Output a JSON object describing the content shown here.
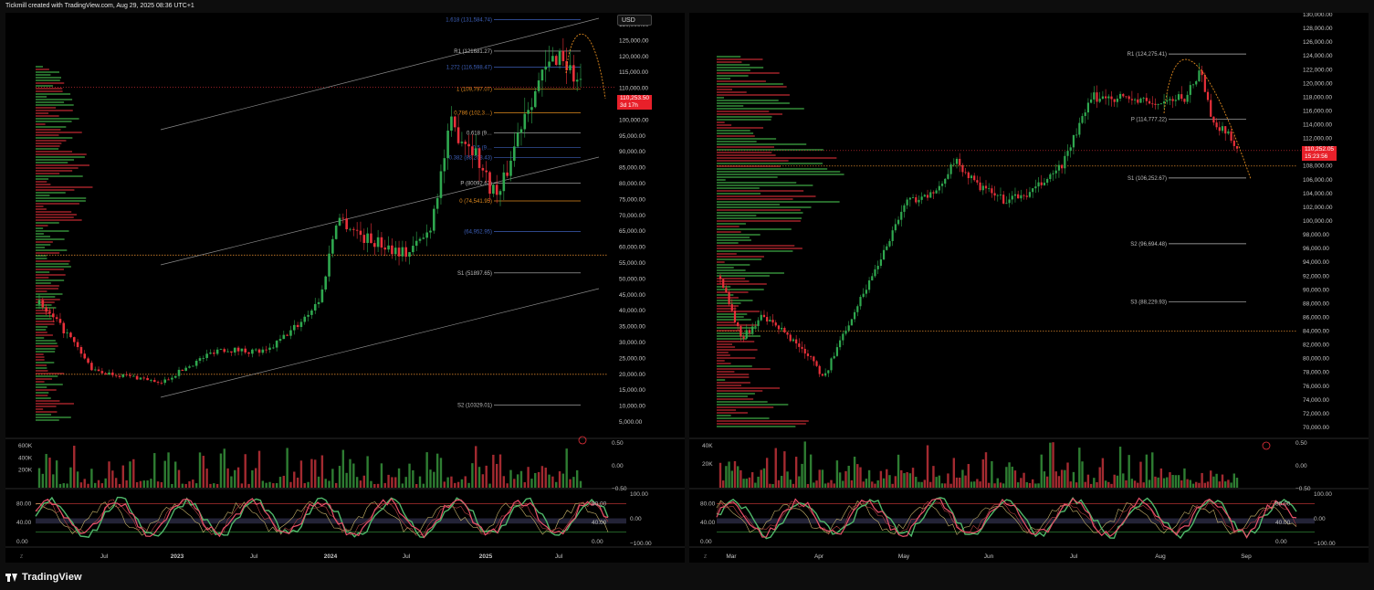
{
  "header": {
    "text": "Tickmill created with TradingView.com, Aug 29, 2025 08:36 UTC+1"
  },
  "footer": {
    "logo": "TradingView"
  },
  "colors": {
    "up": "#26a63a",
    "down": "#e8303a",
    "fib_blue": "#3d5fb8",
    "fib_orange": "#e08a1e",
    "level": "#bdbdbd",
    "dotted": "#e08a1e",
    "price_tag": "#e8202a"
  },
  "chart_data": [
    {
      "type": "candlestick",
      "name": "left-weekly",
      "currency": "USD",
      "price_ticks": [
        "130,000.00",
        "125,000.00",
        "120,000.00",
        "115,000.00",
        "110,000.00",
        "105,000.00",
        "100,000.00",
        "95,000.00",
        "90,000.00",
        "85,000.00",
        "80,000.00",
        "75,000.00",
        "70,000.00",
        "65,000.00",
        "60,000.00",
        "55,000.00",
        "50,000.00",
        "45,000.00",
        "40,000.00",
        "35,000.00",
        "30,000.00",
        "25,000.00",
        "20,000.00",
        "15,000.00",
        "10,000.00",
        "5,000.00"
      ],
      "ylim": [
        5000,
        130000
      ],
      "x_ticks": [
        "Jul",
        "2023",
        "Jul",
        "2024",
        "Jul",
        "2025",
        "Jul"
      ],
      "last_price": {
        "value": "110,253.50",
        "countdown": "3d 17h"
      },
      "levels": [
        {
          "label": "1.618 (131,584.74)",
          "value": 131584.74,
          "color": "fib_blue"
        },
        {
          "label": "R1 (121681.27)",
          "value": 121681.27,
          "color": "level"
        },
        {
          "label": "1.272 (116,598.47)",
          "value": 116598.47,
          "color": "fib_blue"
        },
        {
          "label": "1 (109,797.07)",
          "value": 109797.07,
          "color": "fib_orange"
        },
        {
          "label": "0.786 (102,3…)",
          "value": 102300,
          "color": "fib_orange"
        },
        {
          "label": "0.618 (9…",
          "value": 96000,
          "color": "level"
        },
        {
          "label": "0.5 (9…",
          "value": 91400,
          "color": "fib_blue"
        },
        {
          "label": "0.382 (88,208.43)",
          "value": 88208.43,
          "color": "fib_blue"
        },
        {
          "label": "P (80092.63)",
          "value": 80092.63,
          "color": "level"
        },
        {
          "label": "0 (74,541.95)",
          "value": 74541.95,
          "color": "fib_orange"
        },
        {
          "label": "(64,952.95)",
          "value": 64952.95,
          "color": "fib_blue"
        },
        {
          "label": "S1 (51897.65)",
          "value": 51897.65,
          "color": "level"
        },
        {
          "label": "S2 (10329.01)",
          "value": 10329.01,
          "color": "level"
        }
      ],
      "volume_ticks": [
        "600K",
        "400K",
        "200K"
      ],
      "volume_right_ticks": [
        "0.50",
        "0.00",
        "−0.50"
      ],
      "osc_left_ticks": [
        "80.00",
        "40.00",
        "0.00"
      ],
      "osc_right_ticks": [
        "100.00",
        "0.00",
        "−100.00"
      ],
      "osc_right_inner_ticks": [
        "80.00",
        "40.00",
        "0.00"
      ]
    },
    {
      "type": "candlestick",
      "name": "right-daily",
      "price_ticks": [
        "130,000.00",
        "128,000.00",
        "126,000.00",
        "124,000.00",
        "122,000.00",
        "120,000.00",
        "118,000.00",
        "116,000.00",
        "114,000.00",
        "112,000.00",
        "110,000.00",
        "108,000.00",
        "106,000.00",
        "104,000.00",
        "102,000.00",
        "100,000.00",
        "98,000.00",
        "96,000.00",
        "94,000.00",
        "92,000.00",
        "90,000.00",
        "88,000.00",
        "86,000.00",
        "84,000.00",
        "82,000.00",
        "80,000.00",
        "78,000.00",
        "76,000.00",
        "74,000.00",
        "72,000.00",
        "70,000.00"
      ],
      "ylim": [
        70000,
        130000
      ],
      "x_ticks": [
        "Mar",
        "Apr",
        "May",
        "Jun",
        "Jul",
        "Aug",
        "Sep"
      ],
      "last_price": {
        "value": "110,252.05",
        "countdown": "15:23:56"
      },
      "levels": [
        {
          "label": "R1 (124,275.41)",
          "value": 124275.41,
          "color": "level"
        },
        {
          "label": "P (114,777.22)",
          "value": 114777.22,
          "color": "level"
        },
        {
          "label": "S1 (106,252.67)",
          "value": 106252.67,
          "color": "level"
        },
        {
          "label": "S2 (96,694.48)",
          "value": 96694.48,
          "color": "level"
        },
        {
          "label": "S3 (88,229.93)",
          "value": 88229.93,
          "color": "level"
        }
      ],
      "volume_ticks": [
        "40K",
        "20K"
      ],
      "volume_right_ticks": [
        "0.50",
        "0.00",
        "−0.50"
      ],
      "osc_left_ticks": [
        "80.00",
        "40.00",
        "0.00"
      ],
      "osc_right_ticks": [
        "100.00",
        "0.00",
        "−100.00"
      ],
      "osc_right_inner_ticks": [
        "80.00",
        "40.00",
        "0.00"
      ]
    }
  ]
}
